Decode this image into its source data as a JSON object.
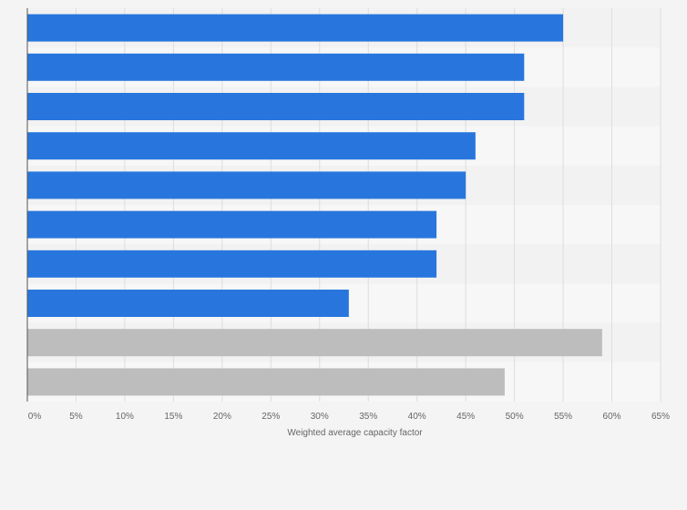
{
  "chart_data": {
    "type": "bar",
    "orientation": "horizontal",
    "title": "",
    "xlabel": "Weighted average capacity factor",
    "ylabel": "",
    "xlim": [
      0,
      65
    ],
    "x_ticks": [
      0,
      5,
      10,
      15,
      20,
      25,
      30,
      35,
      40,
      45,
      50,
      55,
      60,
      65
    ],
    "tick_suffix": "%",
    "grid": true,
    "categories": [
      "",
      "",
      "",
      "",
      "",
      "",
      "",
      "",
      "",
      ""
    ],
    "values": [
      55,
      51,
      51,
      46,
      45,
      42,
      42,
      33,
      59,
      49
    ],
    "bar_colors": [
      "#2876dd",
      "#2876dd",
      "#2876dd",
      "#2876dd",
      "#2876dd",
      "#2876dd",
      "#2876dd",
      "#2876dd",
      "#bdbdbd",
      "#bdbdbd"
    ],
    "colors": {
      "background": "#f4f4f4",
      "band_light": "#f7f7f7",
      "band_dark": "#f2f2f2",
      "gridline": "#dddddd",
      "axis": "#555555",
      "text": "#666666"
    }
  }
}
